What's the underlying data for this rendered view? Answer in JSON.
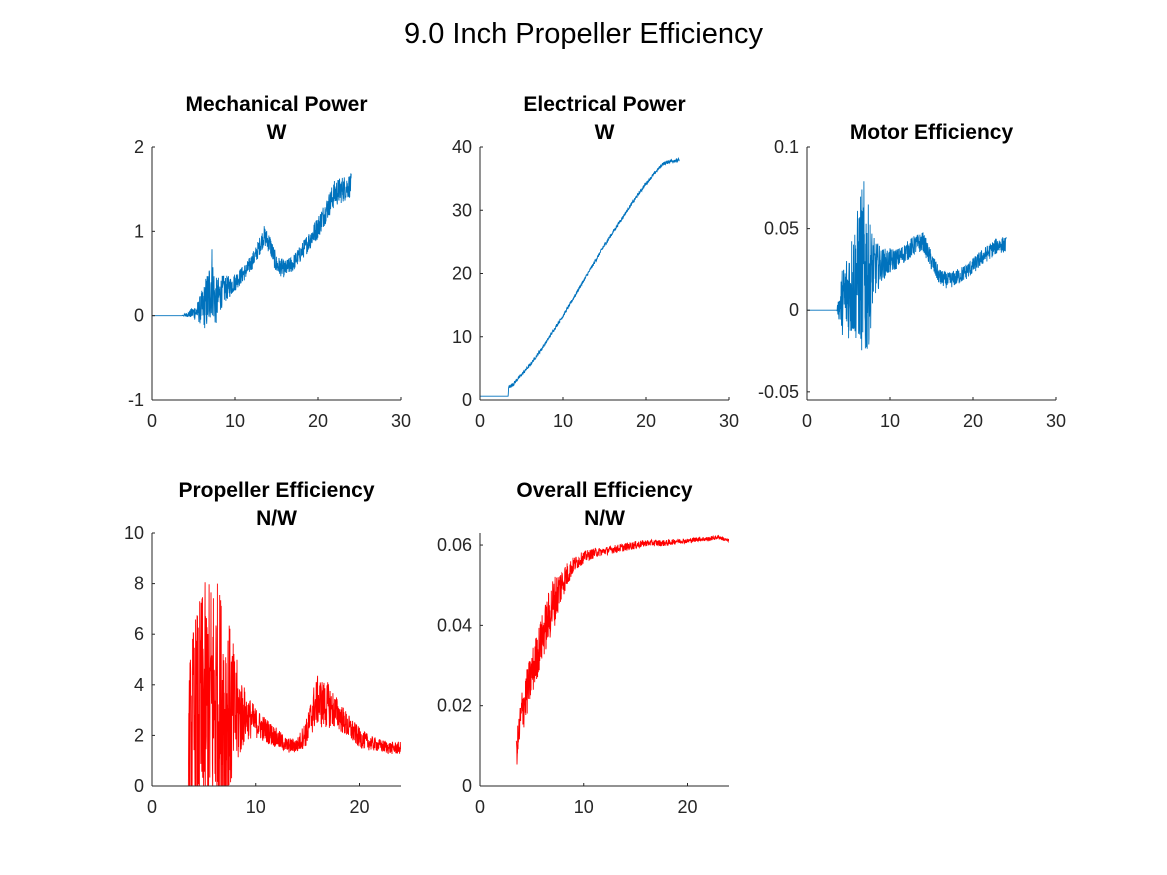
{
  "figure": {
    "title": "9.0 Inch Propeller Efficiency"
  },
  "chart_data": [
    {
      "id": "mech",
      "type": "line",
      "title": [
        "Mechanical Power",
        "W"
      ],
      "xlabel": "",
      "ylabel": "",
      "xlim": [
        0,
        30
      ],
      "ylim": [
        -1,
        2
      ],
      "xticks": [
        0,
        10,
        20,
        30
      ],
      "yticks": [
        -1,
        0,
        1,
        2
      ],
      "grid": false,
      "color": "#0072BD",
      "series": [
        {
          "x": [
            0,
            3.6,
            4.5,
            5.5,
            6.2,
            6.8,
            7.2,
            7.6,
            8.5,
            9.5,
            10.5,
            11.5,
            12.5,
            13.5,
            14.2,
            15,
            16,
            17,
            18,
            19,
            20,
            21,
            22,
            23,
            24
          ],
          "y": [
            0,
            0,
            0.02,
            0.05,
            0.1,
            0.2,
            0.45,
            0.15,
            0.3,
            0.35,
            0.45,
            0.55,
            0.72,
            0.95,
            0.85,
            0.6,
            0.55,
            0.62,
            0.75,
            0.9,
            1.05,
            1.25,
            1.45,
            1.5,
            1.55
          ],
          "noise": [
            0,
            0,
            0.04,
            0.12,
            0.25,
            0.4,
            0.45,
            0.3,
            0.18,
            0.12,
            0.1,
            0.1,
            0.1,
            0.12,
            0.12,
            0.12,
            0.1,
            0.1,
            0.1,
            0.12,
            0.14,
            0.14,
            0.16,
            0.16,
            0.14
          ]
        }
      ]
    },
    {
      "id": "elec",
      "type": "line",
      "title": [
        "Electrical Power",
        "W"
      ],
      "xlabel": "",
      "ylabel": "",
      "xlim": [
        0,
        30
      ],
      "ylim": [
        0,
        40
      ],
      "xticks": [
        0,
        10,
        20,
        30
      ],
      "yticks": [
        0,
        10,
        20,
        30,
        40
      ],
      "grid": false,
      "color": "#0072BD",
      "series": [
        {
          "x": [
            0,
            3.4,
            3.45,
            4,
            5,
            6,
            7,
            8,
            9,
            10,
            11,
            12,
            13,
            14,
            15,
            16,
            17,
            18,
            19,
            20,
            21,
            22,
            23,
            24
          ],
          "y": [
            0.6,
            0.6,
            2.0,
            2.5,
            4.0,
            5.5,
            7.3,
            9.2,
            11.3,
            13.3,
            15.5,
            17.8,
            20.0,
            22.2,
            24.5,
            26.5,
            28.5,
            30.5,
            32.4,
            34.2,
            35.8,
            37.3,
            37.8,
            37.9
          ],
          "noise": [
            0,
            0,
            0.3,
            0.3,
            0.25,
            0.25,
            0.25,
            0.25,
            0.25,
            0.25,
            0.25,
            0.25,
            0.25,
            0.25,
            0.3,
            0.3,
            0.25,
            0.25,
            0.25,
            0.25,
            0.25,
            0.25,
            0.3,
            0.3
          ]
        }
      ]
    },
    {
      "id": "motor",
      "type": "line",
      "title": [
        "Motor Efficiency"
      ],
      "xlabel": "",
      "ylabel": "",
      "xlim": [
        0,
        30
      ],
      "ylim": [
        -0.055,
        0.1
      ],
      "xticks": [
        0,
        10,
        20,
        30
      ],
      "yticks": [
        -0.05,
        0,
        0.05,
        0.1
      ],
      "ytick_labels": [
        "-0.05",
        "0",
        "0.05",
        "0.1"
      ],
      "grid": false,
      "color": "#0072BD",
      "series": [
        {
          "x": [
            0,
            3.6,
            4.2,
            5,
            6,
            6.5,
            7,
            7.5,
            8,
            9,
            10,
            11,
            12,
            13,
            14,
            15,
            16,
            17,
            18,
            19,
            20,
            21,
            22,
            23,
            24
          ],
          "y": [
            0,
            0,
            0.005,
            0.012,
            0.02,
            0.025,
            0.022,
            0.02,
            0.025,
            0.028,
            0.03,
            0.032,
            0.036,
            0.04,
            0.042,
            0.03,
            0.02,
            0.018,
            0.02,
            0.023,
            0.027,
            0.032,
            0.036,
            0.04,
            0.04
          ],
          "noise": [
            0,
            0,
            0.02,
            0.03,
            0.04,
            0.05,
            0.06,
            0.04,
            0.02,
            0.01,
            0.008,
            0.006,
            0.006,
            0.006,
            0.006,
            0.006,
            0.005,
            0.005,
            0.005,
            0.005,
            0.005,
            0.005,
            0.005,
            0.005,
            0.005
          ]
        }
      ]
    },
    {
      "id": "prop",
      "type": "line",
      "title": [
        "Propeller Efficiency",
        "N/W"
      ],
      "xlabel": "",
      "ylabel": "",
      "xlim": [
        0,
        24
      ],
      "ylim": [
        0,
        10
      ],
      "xticks": [
        0,
        10,
        20
      ],
      "yticks": [
        0,
        2,
        4,
        6,
        8,
        10
      ],
      "grid": false,
      "color": "#FF0000",
      "series": [
        {
          "x": [
            3.5,
            4,
            5,
            6,
            7,
            8,
            9,
            10,
            11,
            12,
            13,
            14,
            15,
            15.5,
            16,
            16.5,
            17,
            18,
            19,
            20,
            21,
            22,
            23,
            24
          ],
          "y": [
            2.0,
            2.5,
            3.0,
            3.5,
            3.0,
            2.8,
            2.8,
            2.5,
            2.2,
            1.9,
            1.6,
            1.6,
            2.2,
            3.0,
            3.4,
            3.2,
            3.2,
            2.8,
            2.3,
            1.9,
            1.7,
            1.6,
            1.5,
            1.5
          ],
          "noise": [
            2.5,
            4,
            5,
            5,
            4.5,
            2.5,
            1.0,
            0.6,
            0.5,
            0.4,
            0.3,
            0.3,
            0.6,
            0.9,
            1.0,
            1.0,
            0.9,
            0.6,
            0.5,
            0.4,
            0.3,
            0.25,
            0.25,
            0.25
          ]
        }
      ]
    },
    {
      "id": "overall",
      "type": "line",
      "title": [
        "Overall Efficiency",
        "N/W"
      ],
      "xlabel": "",
      "ylabel": "",
      "xlim": [
        0,
        24
      ],
      "ylim": [
        0,
        0.063
      ],
      "xticks": [
        0,
        10,
        20
      ],
      "yticks": [
        0,
        0.02,
        0.04,
        0.06
      ],
      "ytick_labels": [
        "0",
        "0.02",
        "0.04",
        "0.06"
      ],
      "grid": false,
      "color": "#FF0000",
      "series": [
        {
          "x": [
            3.5,
            4,
            5,
            6,
            7,
            8,
            9,
            10,
            11,
            12,
            13,
            14,
            15,
            16,
            17,
            18,
            19,
            20,
            21,
            22,
            23,
            24
          ],
          "y": [
            0.008,
            0.018,
            0.028,
            0.037,
            0.045,
            0.051,
            0.055,
            0.057,
            0.058,
            0.0585,
            0.059,
            0.0595,
            0.06,
            0.0605,
            0.0605,
            0.0605,
            0.061,
            0.061,
            0.0615,
            0.0615,
            0.062,
            0.061
          ],
          "noise": [
            0.004,
            0.006,
            0.006,
            0.006,
            0.007,
            0.004,
            0.002,
            0.0015,
            0.0012,
            0.001,
            0.001,
            0.001,
            0.001,
            0.0008,
            0.0008,
            0.0008,
            0.0006,
            0.0006,
            0.0006,
            0.0006,
            0.0005,
            0.0005
          ]
        }
      ]
    }
  ]
}
